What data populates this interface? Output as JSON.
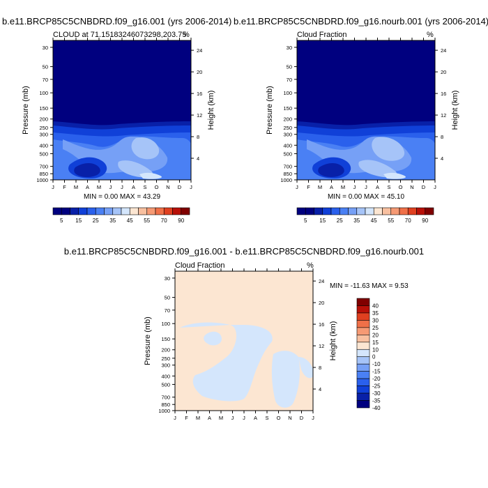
{
  "colors": {
    "abs_scale": [
      "#00007f",
      "#0820a8",
      "#1040d8",
      "#2a60ec",
      "#4a80f4",
      "#76a0f6",
      "#a6c4f8",
      "#d4e6fc",
      "#fce6d2",
      "#f8c0a0",
      "#f69a74",
      "#f07048",
      "#e04020",
      "#b81008",
      "#800000"
    ],
    "diff_scale": [
      "#00007f",
      "#0820a8",
      "#1040d8",
      "#2a60ec",
      "#4a80f4",
      "#76a0f6",
      "#a6c4f8",
      "#d4e6fc",
      "#fce6d2",
      "#f8c0a0",
      "#f69a74",
      "#f07048",
      "#e04020",
      "#b81008",
      "#800000"
    ],
    "frame": "#000000"
  },
  "panel1": {
    "title": "b.e11.BRCP85C5CNBDRD.f09_g16.001 (yrs 2006-2014)",
    "left_label": "CLOUD at 71.15183246073298,203.75",
    "right_label": "%",
    "ylabel": "Pressure (mb)",
    "y2label": "Height (km)",
    "minmax": "MIN =   0.00 MAX =  43.29",
    "colorbar_labels": [
      "5",
      "15",
      "25",
      "35",
      "45",
      "55",
      "70",
      "90"
    ]
  },
  "panel2": {
    "title": "b.e11.BRCP85C5CNBDRD.f09_g16.nourb.001 (yrs 2006-2014)",
    "left_label": "Cloud Fraction",
    "right_label": "%",
    "ylabel": "Pressure (mb)",
    "y2label": "Height (km)",
    "minmax": "MIN =   0.00 MAX =  45.10",
    "colorbar_labels": [
      "5",
      "15",
      "25",
      "35",
      "45",
      "55",
      "70",
      "90"
    ]
  },
  "panel3": {
    "title": "b.e11.BRCP85C5CNBDRD.f09_g16.001 - b.e11.BRCP85C5CNBDRD.f09_g16.nourb.001",
    "left_label": "Cloud Fraction",
    "right_label": "%",
    "ylabel": "Pressure (mb)",
    "y2label": "Height (km)",
    "minmax": "MIN = -11.63 MAX =   9.53",
    "colorbar_labels": [
      "40",
      "35",
      "30",
      "25",
      "20",
      "15",
      "10",
      "0",
      "-10",
      "-15",
      "-20",
      "-25",
      "-30",
      "-35",
      "-40"
    ]
  },
  "chart_data": [
    {
      "type": "heatmap",
      "title": "b.e11.BRCP85C5CNBDRD.f09_g16.001 (yrs 2006-2014)",
      "subtitle": "CLOUD at 71.15183246073298,203.75",
      "units": "%",
      "xlabel": "",
      "ylabel": "Pressure (mb)",
      "y2label": "Height (km)",
      "x_ticks": [
        "J",
        "F",
        "M",
        "A",
        "M",
        "J",
        "J",
        "A",
        "S",
        "O",
        "N",
        "D",
        "J"
      ],
      "y_ticks": [
        30,
        50,
        70,
        100,
        150,
        200,
        250,
        300,
        400,
        500,
        700,
        850,
        1000
      ],
      "y2_ticks": [
        4,
        8,
        12,
        16,
        20,
        24
      ],
      "y_scale": "log",
      "ylim": [
        1000,
        25
      ],
      "levels": [
        5,
        10,
        15,
        20,
        25,
        30,
        35,
        40,
        45,
        50,
        55,
        60,
        70,
        80,
        90
      ],
      "min": 0.0,
      "max": 43.29,
      "profile_by_pressure": [
        {
          "p": 25,
          "v": 0
        },
        {
          "p": 150,
          "v": 0.5
        },
        {
          "p": 200,
          "v": 4
        },
        {
          "p": 250,
          "v": 18
        },
        {
          "p": 300,
          "v": 22
        },
        {
          "p": 400,
          "v": 24
        },
        {
          "p": 500,
          "v": 22
        },
        {
          "p": 700,
          "v": 18
        },
        {
          "p": 850,
          "v": 12
        },
        {
          "p": 1000,
          "v": 20
        }
      ]
    },
    {
      "type": "heatmap",
      "title": "b.e11.BRCP85C5CNBDRD.f09_g16.nourb.001 (yrs 2006-2014)",
      "subtitle": "Cloud Fraction",
      "units": "%",
      "xlabel": "",
      "ylabel": "Pressure (mb)",
      "y2label": "Height (km)",
      "x_ticks": [
        "J",
        "F",
        "M",
        "A",
        "M",
        "J",
        "J",
        "A",
        "S",
        "O",
        "N",
        "D",
        "J"
      ],
      "y_ticks": [
        30,
        50,
        70,
        100,
        150,
        200,
        250,
        300,
        400,
        500,
        700,
        850,
        1000
      ],
      "y2_ticks": [
        4,
        8,
        12,
        16,
        20,
        24
      ],
      "y_scale": "log",
      "ylim": [
        1000,
        25
      ],
      "levels": [
        5,
        10,
        15,
        20,
        25,
        30,
        35,
        40,
        45,
        50,
        55,
        60,
        70,
        80,
        90
      ],
      "min": 0.0,
      "max": 45.1,
      "profile_by_pressure": [
        {
          "p": 25,
          "v": 0
        },
        {
          "p": 150,
          "v": 0.5
        },
        {
          "p": 200,
          "v": 4
        },
        {
          "p": 250,
          "v": 18
        },
        {
          "p": 300,
          "v": 22
        },
        {
          "p": 400,
          "v": 24
        },
        {
          "p": 500,
          "v": 22
        },
        {
          "p": 700,
          "v": 18
        },
        {
          "p": 850,
          "v": 12
        },
        {
          "p": 1000,
          "v": 20
        }
      ]
    },
    {
      "type": "heatmap",
      "title": "b.e11.BRCP85C5CNBDRD.f09_g16.001 - b.e11.BRCP85C5CNBDRD.f09_g16.nourb.001",
      "subtitle": "Cloud Fraction",
      "units": "%",
      "xlabel": "",
      "ylabel": "Pressure (mb)",
      "y2label": "Height (km)",
      "x_ticks": [
        "J",
        "F",
        "M",
        "A",
        "M",
        "J",
        "J",
        "A",
        "S",
        "O",
        "N",
        "D",
        "J"
      ],
      "y_ticks": [
        30,
        50,
        70,
        100,
        150,
        200,
        250,
        300,
        400,
        500,
        700,
        850,
        1000
      ],
      "y2_ticks": [
        4,
        8,
        12,
        16,
        20,
        24
      ],
      "y_scale": "log",
      "ylim": [
        1000,
        25
      ],
      "levels": [
        -40,
        -35,
        -30,
        -25,
        -20,
        -15,
        -10,
        0,
        10,
        15,
        20,
        25,
        30,
        35,
        40
      ],
      "min": -11.63,
      "max": 9.53,
      "dominant_values": [
        "0 to 10 (light orange)",
        "-10 to 0 (light blue)"
      ]
    }
  ]
}
